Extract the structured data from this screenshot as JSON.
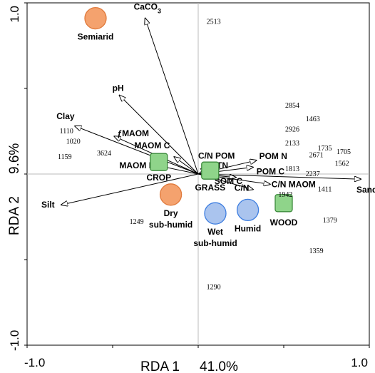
{
  "chart_data": {
    "type": "scatter",
    "title": "",
    "xlabel": "RDA 1",
    "xpct": "41.0%",
    "ylabel": "RDA 2",
    "ypct": "9.6%",
    "xlim": [
      -1.0,
      1.0
    ],
    "ylim": [
      -1.0,
      1.0
    ],
    "xticks": [
      "-1.0",
      "1.0"
    ],
    "yticks": [
      "1.0",
      "-1.0"
    ],
    "grid": false,
    "vectors": [
      {
        "name": "CaCO3",
        "label": "CaCO",
        "sub": "3",
        "x": -0.31,
        "y": 0.91
      },
      {
        "name": "pH",
        "label": "pH",
        "x": -0.46,
        "y": 0.46
      },
      {
        "name": "Clay",
        "label": "Clay",
        "x": -0.72,
        "y": 0.28
      },
      {
        "name": "fMAOM",
        "label": "ƒMAOM",
        "x": -0.49,
        "y": 0.22
      },
      {
        "name": "MAOM C",
        "label": "MAOM C",
        "x": -0.14,
        "y": 0.1
      },
      {
        "name": "C/N POM",
        "label": "C/N POM",
        "x": 0.05,
        "y": 0.04
      },
      {
        "name": "TN",
        "label": "TN",
        "x": 0.1,
        "y": 0.02
      },
      {
        "name": "MAOM N",
        "label": "MAOM N",
        "x": -0.24,
        "y": 0.05
      },
      {
        "name": "POM N",
        "label": "POM N",
        "x": 0.34,
        "y": 0.08
      },
      {
        "name": "POM C",
        "label": "POM C",
        "x": 0.32,
        "y": 0.04
      },
      {
        "name": "SOM C",
        "label": "SOM C",
        "x": 0.22,
        "y": -0.02
      },
      {
        "name": "C/N",
        "label": "C/N",
        "x": 0.32,
        "y": -0.09
      },
      {
        "name": "C/N MAOM",
        "label": "C/N MAOM",
        "x": 0.42,
        "y": -0.06
      },
      {
        "name": "Sand",
        "label": "Sand",
        "x": 0.95,
        "y": -0.03
      },
      {
        "name": "Silt",
        "label": "Silt",
        "x": -0.8,
        "y": -0.18
      }
    ],
    "climate": [
      {
        "name": "Semiarid",
        "label": [
          "Semiarid"
        ],
        "x": -0.6,
        "y": 0.91,
        "color": "#f4a26e"
      },
      {
        "name": "Dry sub-humid",
        "label": [
          "Dry",
          "sub-humid"
        ],
        "x": -0.16,
        "y": -0.12,
        "color": "#f4a26e"
      },
      {
        "name": "Wet sub-humid",
        "label": [
          "Wet",
          "sub-humid"
        ],
        "x": 0.1,
        "y": -0.23,
        "color": "#aac4ee"
      },
      {
        "name": "Humid",
        "label": [
          "Humid"
        ],
        "x": 0.29,
        "y": -0.21,
        "color": "#aac4ee"
      }
    ],
    "land_use": [
      {
        "name": "CROP",
        "label": "CROP",
        "x": -0.23,
        "y": 0.07
      },
      {
        "name": "GRASS",
        "label": "GRASS",
        "x": 0.07,
        "y": 0.02
      },
      {
        "name": "WOOD",
        "label": "WOOD",
        "x": 0.5,
        "y": -0.17
      }
    ],
    "sites": [
      {
        "label": "2513",
        "x": 0.09,
        "y": 0.89
      },
      {
        "label": "2854",
        "x": 0.55,
        "y": 0.4
      },
      {
        "label": "1463",
        "x": 0.67,
        "y": 0.32
      },
      {
        "label": "2926",
        "x": 0.55,
        "y": 0.26
      },
      {
        "label": "2133",
        "x": 0.55,
        "y": 0.18
      },
      {
        "label": "1735",
        "x": 0.74,
        "y": 0.15
      },
      {
        "label": "1705",
        "x": 0.85,
        "y": 0.13
      },
      {
        "label": "2671",
        "x": 0.69,
        "y": 0.11
      },
      {
        "label": "1562",
        "x": 0.84,
        "y": 0.06
      },
      {
        "label": "1813",
        "x": 0.55,
        "y": 0.03
      },
      {
        "label": "2237",
        "x": 0.67,
        "y": 0.0
      },
      {
        "label": "1942",
        "x": 0.51,
        "y": -0.12
      },
      {
        "label": "1411",
        "x": 0.74,
        "y": -0.09
      },
      {
        "label": "1379",
        "x": 0.77,
        "y": -0.27
      },
      {
        "label": "1359",
        "x": 0.69,
        "y": -0.45
      },
      {
        "label": "1290",
        "x": 0.09,
        "y": -0.66
      },
      {
        "label": "1249",
        "x": -0.36,
        "y": -0.28
      },
      {
        "label": "1110",
        "x": -0.77,
        "y": 0.25
      },
      {
        "label": "1020",
        "x": -0.73,
        "y": 0.19
      },
      {
        "label": "1159",
        "x": -0.78,
        "y": 0.1
      },
      {
        "label": "3624",
        "x": -0.55,
        "y": 0.12
      }
    ]
  }
}
